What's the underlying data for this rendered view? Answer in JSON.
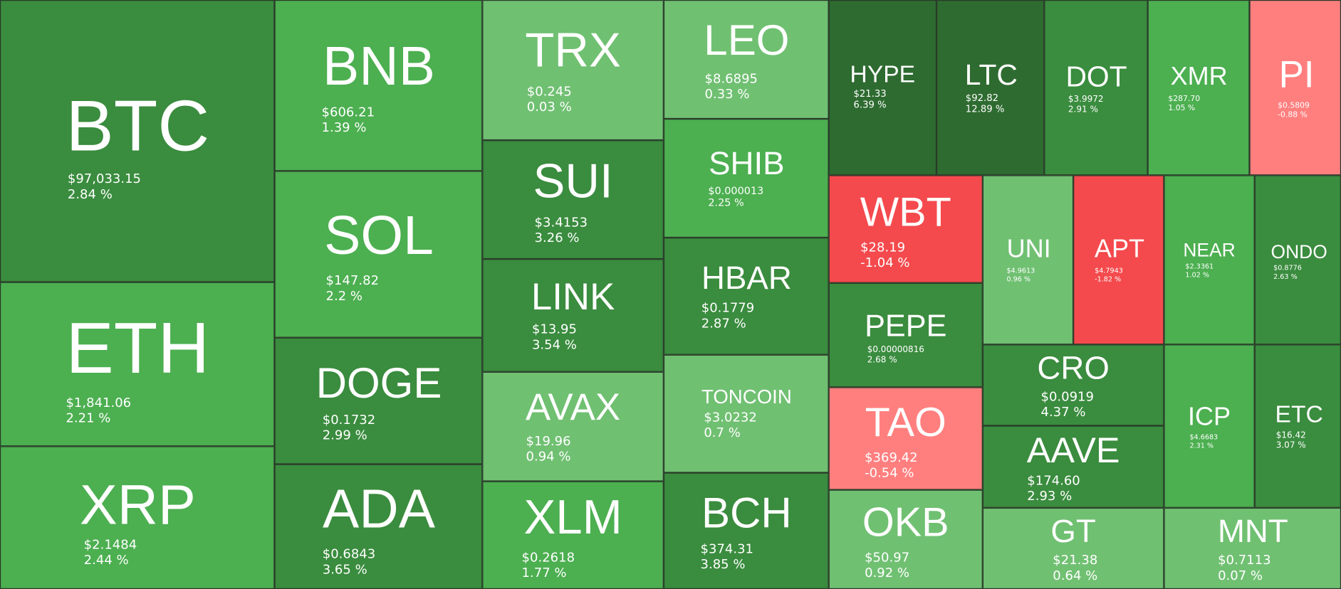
{
  "colors": {
    "strong_green": "#2e6b30",
    "dark_green": "#3a8c3e",
    "green": "#4caf50",
    "light_green": "#70c072",
    "red": "#f44a4d",
    "light_red": "#ff7f7f"
  },
  "chart_data": {
    "type": "heatmap",
    "title": "",
    "items": [
      {
        "symbol": "BTC",
        "price": "$97,033.15",
        "change": "2.84 %",
        "change_pct": 2.84
      },
      {
        "symbol": "ETH",
        "price": "$1,841.06",
        "change": "2.21 %",
        "change_pct": 2.21
      },
      {
        "symbol": "XRP",
        "price": "$2.1484",
        "change": "2.44 %",
        "change_pct": 2.44
      },
      {
        "symbol": "BNB",
        "price": "$606.21",
        "change": "1.39 %",
        "change_pct": 1.39
      },
      {
        "symbol": "SOL",
        "price": "$147.82",
        "change": "2.2 %",
        "change_pct": 2.2
      },
      {
        "symbol": "DOGE",
        "price": "$0.1732",
        "change": "2.99 %",
        "change_pct": 2.99
      },
      {
        "symbol": "ADA",
        "price": "$0.6843",
        "change": "3.65 %",
        "change_pct": 3.65
      },
      {
        "symbol": "TRX",
        "price": "$0.245",
        "change": "0.03 %",
        "change_pct": 0.03
      },
      {
        "symbol": "SUI",
        "price": "$3.4153",
        "change": "3.26 %",
        "change_pct": 3.26
      },
      {
        "symbol": "LINK",
        "price": "$13.95",
        "change": "3.54 %",
        "change_pct": 3.54
      },
      {
        "symbol": "AVAX",
        "price": "$19.96",
        "change": "0.94 %",
        "change_pct": 0.94
      },
      {
        "symbol": "XLM",
        "price": "$0.2618",
        "change": "1.77 %",
        "change_pct": 1.77
      },
      {
        "symbol": "LEO",
        "price": "$8.6895",
        "change": "0.33 %",
        "change_pct": 0.33
      },
      {
        "symbol": "SHIB",
        "price": "$0.000013",
        "change": "2.25 %",
        "change_pct": 2.25
      },
      {
        "symbol": "HBAR",
        "price": "$0.1779",
        "change": "2.87 %",
        "change_pct": 2.87
      },
      {
        "symbol": "TONCOIN",
        "price": "$3.0232",
        "change": "0.7 %",
        "change_pct": 0.7
      },
      {
        "symbol": "BCH",
        "price": "$374.31",
        "change": "3.85 %",
        "change_pct": 3.85
      },
      {
        "symbol": "HYPE",
        "price": "$21.33",
        "change": "6.39 %",
        "change_pct": 6.39
      },
      {
        "symbol": "LTC",
        "price": "$92.82",
        "change": "12.89 %",
        "change_pct": 12.89
      },
      {
        "symbol": "DOT",
        "price": "$3.9972",
        "change": "2.91 %",
        "change_pct": 2.91
      },
      {
        "symbol": "XMR",
        "price": "$287.70",
        "change": "1.05 %",
        "change_pct": 1.05
      },
      {
        "symbol": "PI",
        "price": "$0.5809",
        "change": "-0.88 %",
        "change_pct": -0.88
      },
      {
        "symbol": "WBT",
        "price": "$28.19",
        "change": "-1.04 %",
        "change_pct": -1.04
      },
      {
        "symbol": "PEPE",
        "price": "$0.00000816",
        "change": "2.68 %",
        "change_pct": 2.68
      },
      {
        "symbol": "TAO",
        "price": "$369.42",
        "change": "-0.54 %",
        "change_pct": -0.54
      },
      {
        "symbol": "OKB",
        "price": "$50.97",
        "change": "0.92 %",
        "change_pct": 0.92
      },
      {
        "symbol": "UNI",
        "price": "$4.9613",
        "change": "0.96 %",
        "change_pct": 0.96
      },
      {
        "symbol": "APT",
        "price": "$4.7943",
        "change": "-1.82 %",
        "change_pct": -1.82
      },
      {
        "symbol": "NEAR",
        "price": "$2.3361",
        "change": "1.02 %",
        "change_pct": 1.02
      },
      {
        "symbol": "ONDO",
        "price": "$0.8776",
        "change": "2.63 %",
        "change_pct": 2.63
      },
      {
        "symbol": "CRO",
        "price": "$0.0919",
        "change": "4.37 %",
        "change_pct": 4.37
      },
      {
        "symbol": "AAVE",
        "price": "$174.60",
        "change": "2.93 %",
        "change_pct": 2.93
      },
      {
        "symbol": "ICP",
        "price": "$4.6683",
        "change": "2.31 %",
        "change_pct": 2.31
      },
      {
        "symbol": "ETC",
        "price": "$16.42",
        "change": "3.07 %",
        "change_pct": 3.07
      },
      {
        "symbol": "GT",
        "price": "$21.38",
        "change": "0.64 %",
        "change_pct": 0.64
      },
      {
        "symbol": "MNT",
        "price": "$0.7113",
        "change": "0.07 %",
        "change_pct": 0.07
      }
    ]
  }
}
